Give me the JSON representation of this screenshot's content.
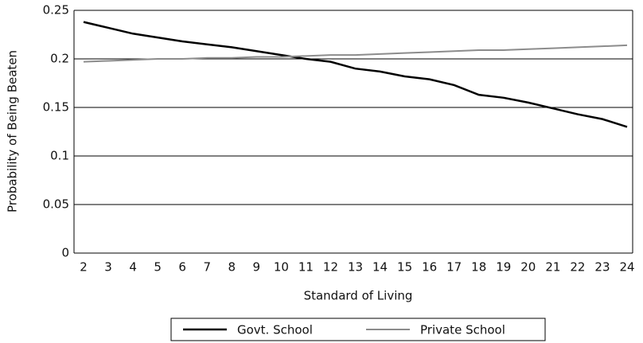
{
  "chart_data": {
    "type": "line",
    "x_label": "Standard of Living",
    "y_label": "Probability of Being Beaten",
    "x": [
      2,
      3,
      4,
      5,
      6,
      7,
      8,
      9,
      10,
      11,
      12,
      13,
      14,
      15,
      16,
      17,
      18,
      19,
      20,
      21,
      22,
      23,
      24
    ],
    "xlim": [
      2,
      24
    ],
    "xticks": [
      2,
      3,
      4,
      5,
      6,
      7,
      8,
      9,
      10,
      11,
      12,
      13,
      14,
      15,
      16,
      17,
      18,
      19,
      20,
      21,
      22,
      23,
      24
    ],
    "ylim": [
      0,
      0.25
    ],
    "yticks": [
      0,
      0.05,
      0.1,
      0.15,
      0.2,
      0.25
    ],
    "grid": true,
    "legend": "bottom",
    "series": [
      {
        "name": "Govt. School",
        "color": "#000000",
        "values": [
          0.238,
          0.232,
          0.226,
          0.222,
          0.218,
          0.215,
          0.212,
          0.208,
          0.204,
          0.2,
          0.197,
          0.19,
          0.187,
          0.182,
          0.179,
          0.173,
          0.163,
          0.16,
          0.155,
          0.149,
          0.143,
          0.138,
          0.13
        ]
      },
      {
        "name": "Private School",
        "color": "#8c8c8c",
        "values": [
          0.197,
          0.198,
          0.199,
          0.2,
          0.2,
          0.201,
          0.201,
          0.202,
          0.202,
          0.203,
          0.204,
          0.204,
          0.205,
          0.206,
          0.207,
          0.208,
          0.209,
          0.209,
          0.21,
          0.211,
          0.212,
          0.213,
          0.214
        ]
      }
    ]
  }
}
